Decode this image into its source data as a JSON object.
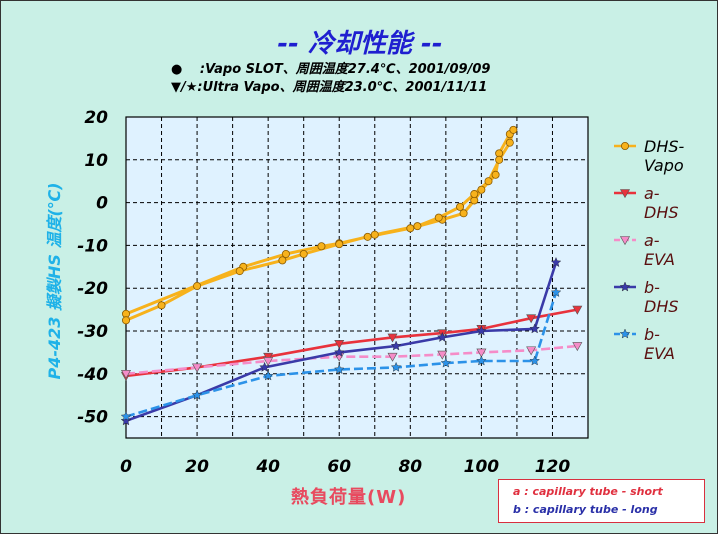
{
  "header": {
    "title": "-- 冷却性能 --",
    "subtitle_1": "●　 :Vapo SLOT、周囲温度27.4℃、2001/09/09",
    "subtitle_2": "▼/★:Ultra Vapo、周囲温度23.0℃、2001/11/11"
  },
  "notes": {
    "a": "a : capillary tube - short",
    "b": "b : capillary tube - long"
  },
  "chart_data": {
    "type": "line",
    "title": "-- 冷却性能 --",
    "xlabel": "熱負荷量(W)",
    "ylabel": "P4-423 擬製HS 温度(℃)",
    "xlim": [
      0,
      130
    ],
    "ylim": [
      -55,
      20
    ],
    "xticks": [
      0,
      20,
      40,
      60,
      80,
      100,
      120
    ],
    "yticks": [
      20,
      10,
      0,
      -10,
      -20,
      -30,
      -40,
      -50
    ],
    "grid": true,
    "legend_position": "right",
    "series": [
      {
        "name": "DHS-Vapo",
        "color": "#f7b21c",
        "marker": "circle",
        "style": "solid",
        "x": [
          0,
          33,
          45,
          55,
          60,
          68,
          80,
          89,
          95,
          98,
          100,
          104,
          105,
          108,
          109,
          108,
          105,
          102,
          98,
          94,
          88,
          82,
          70,
          60,
          50,
          44,
          32,
          20,
          10,
          0
        ],
        "y": [
          -26,
          -15,
          -12,
          -10.2,
          -9.5,
          -8,
          -6,
          -4,
          -2.5,
          0.5,
          3,
          6.5,
          11.5,
          16,
          17,
          14,
          10,
          5,
          2,
          -1,
          -3.5,
          -5.5,
          -7.5,
          -9.7,
          -12,
          -13.5,
          -16,
          -19.5,
          -24,
          -27.5
        ]
      },
      {
        "name": "a-DHS",
        "color": "#e8323c",
        "marker": "triangle-down",
        "style": "solid",
        "x": [
          0,
          20,
          40,
          60,
          75,
          89,
          100,
          114,
          127
        ],
        "y": [
          -40.5,
          -38.5,
          -36,
          -33,
          -31.5,
          -30.5,
          -29.5,
          -27,
          -25
        ]
      },
      {
        "name": "a-EVA",
        "color": "#f58cc8",
        "marker": "triangle-down",
        "style": "dashed",
        "x": [
          0,
          20,
          40,
          60,
          75,
          89,
          100,
          114,
          127
        ],
        "y": [
          -40,
          -38.5,
          -37,
          -36,
          -36,
          -35.5,
          -35,
          -34.5,
          -33.5
        ]
      },
      {
        "name": "b-DHS",
        "color": "#3a3aa8",
        "marker": "star",
        "style": "solid",
        "x": [
          0,
          20,
          39,
          60,
          76,
          89,
          100,
          115,
          121
        ],
        "y": [
          -51,
          -45,
          -38.5,
          -35,
          -33.5,
          -31.5,
          -30,
          -29.5,
          -14
        ]
      },
      {
        "name": "b-EVA",
        "color": "#2c92e8",
        "marker": "star",
        "style": "dashed",
        "x": [
          0,
          20,
          40,
          60,
          76,
          90,
          100,
          115,
          121
        ],
        "y": [
          -50,
          -45,
          -40.5,
          -39,
          -38.5,
          -37.5,
          -37,
          -37,
          -21
        ]
      }
    ]
  }
}
